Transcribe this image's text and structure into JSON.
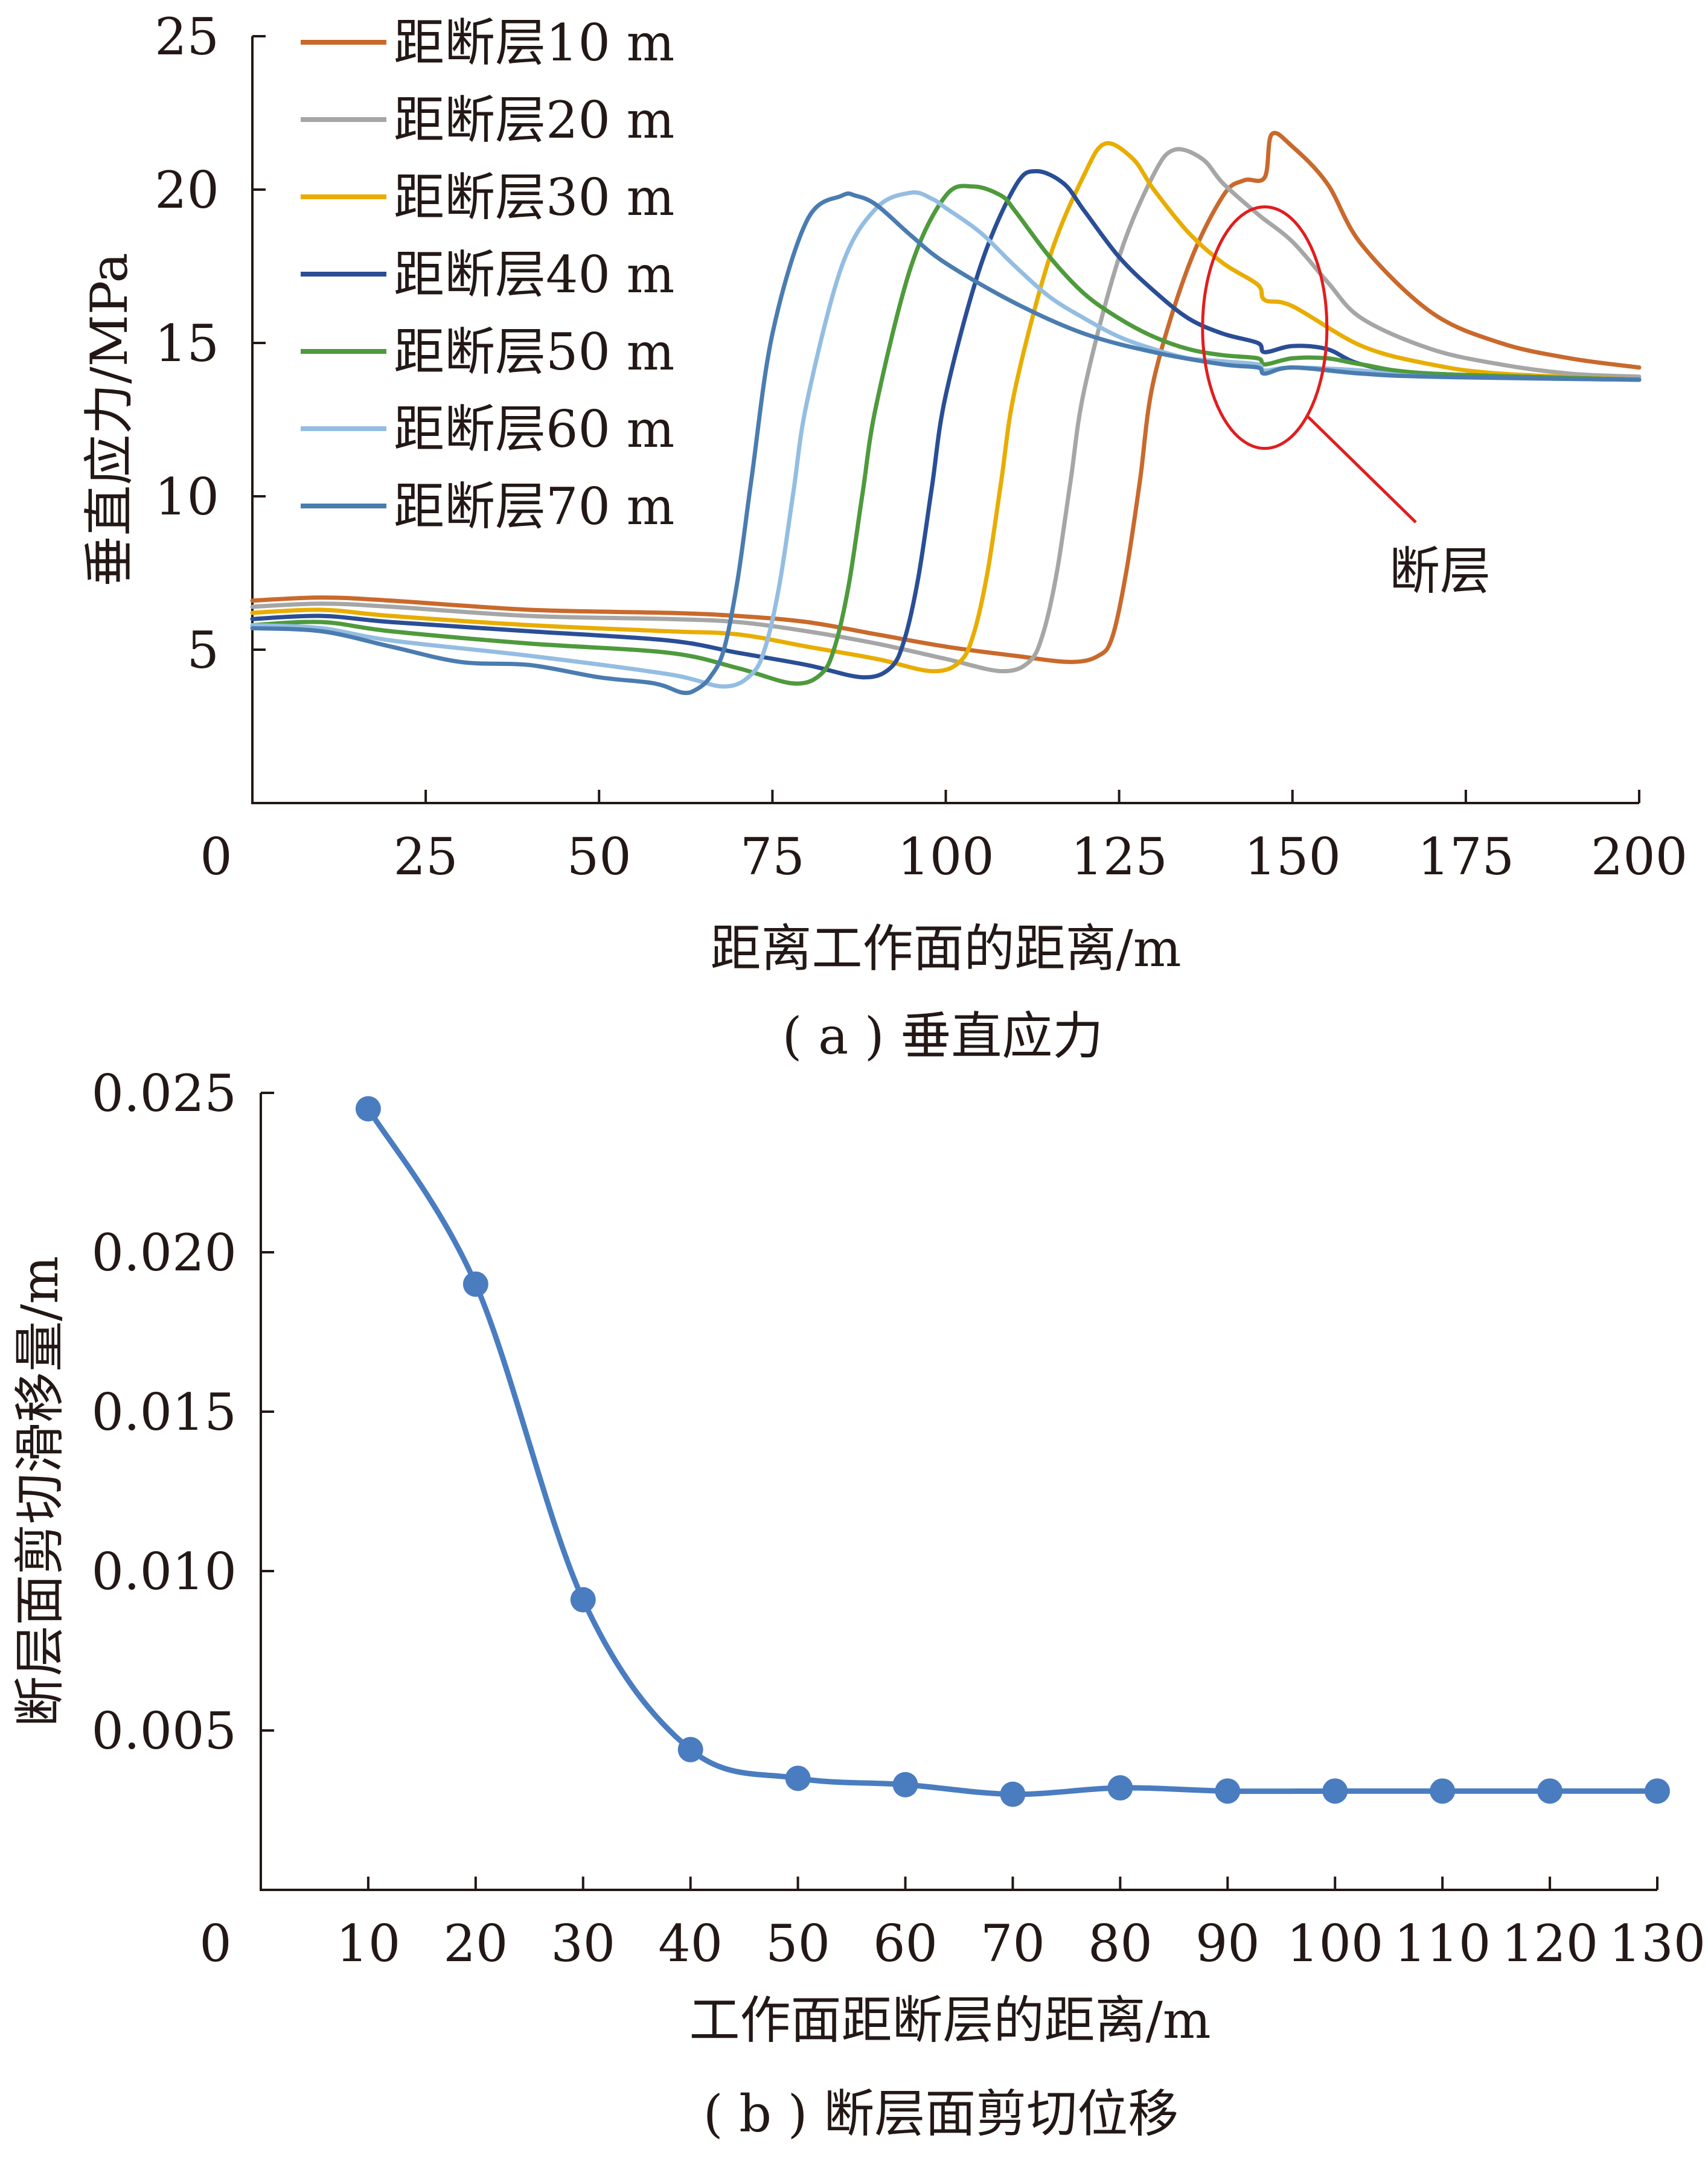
{
  "chart_data": [
    {
      "type": "line",
      "caption": "( a ) 垂直应力",
      "xlabel": "距离工作面的距离/m",
      "ylabel": "垂直应力/MPa",
      "xlim": [
        0,
        200
      ],
      "ylim": [
        0,
        25
      ],
      "xticks": [
        0,
        25,
        50,
        75,
        100,
        125,
        150,
        175,
        200
      ],
      "yticks": [
        5,
        10,
        15,
        20,
        25
      ],
      "origin_label": "0",
      "grid": false,
      "legend_position": "top-left",
      "annotation": {
        "text": "断层",
        "type": "ellipse",
        "color": "#e01e1e",
        "x": 146,
        "y": 15.5
      },
      "series": [
        {
          "name": "距断层10 m",
          "color": "#c9692c",
          "x": [
            0,
            10,
            20,
            40,
            60,
            70,
            80,
            90,
            100,
            110,
            118,
            122,
            124,
            126,
            128,
            130,
            135,
            140,
            143,
            146,
            147,
            150,
            155,
            160,
            170,
            180,
            190,
            200
          ],
          "y": [
            6.6,
            6.7,
            6.6,
            6.3,
            6.2,
            6.1,
            5.9,
            5.5,
            5.1,
            4.8,
            4.6,
            4.8,
            5.4,
            7.5,
            10.5,
            13.8,
            17.5,
            19.8,
            20.3,
            20.4,
            21.8,
            21.4,
            20.2,
            18.2,
            16.0,
            15.0,
            14.5,
            14.2
          ]
        },
        {
          "name": "距断层20 m",
          "color": "#a6a6a6",
          "x": [
            0,
            10,
            20,
            40,
            60,
            70,
            80,
            90,
            100,
            108,
            112,
            114,
            116,
            118,
            120,
            125,
            130,
            133,
            137,
            140,
            145,
            150,
            155,
            160,
            170,
            180,
            190,
            200
          ],
          "y": [
            6.4,
            6.5,
            6.4,
            6.1,
            6.0,
            5.9,
            5.6,
            5.2,
            4.7,
            4.3,
            4.6,
            5.5,
            7.5,
            10.5,
            13.5,
            17.8,
            20.5,
            21.3,
            21.0,
            20.2,
            19.2,
            18.3,
            17.0,
            15.8,
            14.8,
            14.3,
            14.0,
            13.9
          ]
        },
        {
          "name": "距断层30 m",
          "color": "#e8ad00",
          "x": [
            0,
            10,
            20,
            40,
            60,
            70,
            80,
            90,
            98,
            102,
            104,
            106,
            108,
            110,
            115,
            120,
            123,
            127,
            130,
            135,
            140,
            145,
            146,
            150,
            160,
            170,
            180,
            200
          ],
          "y": [
            6.2,
            6.3,
            6.1,
            5.8,
            5.6,
            5.5,
            5.1,
            4.7,
            4.3,
            4.6,
            5.5,
            7.5,
            10.5,
            13.5,
            17.8,
            20.5,
            21.5,
            21.0,
            20.0,
            18.6,
            17.6,
            16.9,
            16.4,
            16.2,
            14.9,
            14.3,
            14.0,
            13.8
          ]
        },
        {
          "name": "距断层40 m",
          "color": "#2a4e96",
          "x": [
            0,
            10,
            20,
            40,
            60,
            70,
            80,
            88,
            92,
            94,
            96,
            98,
            100,
            105,
            110,
            113,
            117,
            120,
            125,
            130,
            135,
            140,
            145,
            146,
            150,
            155,
            160,
            170,
            200
          ],
          "y": [
            6.0,
            6.1,
            5.9,
            5.6,
            5.3,
            4.9,
            4.5,
            4.1,
            4.4,
            5.3,
            7.3,
            10.3,
            13.3,
            17.5,
            20.1,
            20.6,
            20.2,
            19.3,
            17.8,
            16.7,
            15.8,
            15.3,
            15.0,
            14.7,
            14.9,
            14.8,
            14.3,
            14.0,
            13.8
          ]
        },
        {
          "name": "距断层50 m",
          "color": "#4e9a3c",
          "x": [
            0,
            10,
            20,
            40,
            60,
            70,
            78,
            82,
            84,
            86,
            88,
            90,
            95,
            100,
            104,
            108,
            110,
            115,
            120,
            125,
            130,
            135,
            140,
            145,
            146,
            150,
            155,
            160,
            170,
            200
          ],
          "y": [
            5.8,
            5.9,
            5.6,
            5.2,
            4.9,
            4.4,
            3.9,
            4.2,
            5.1,
            7.1,
            10.1,
            13.0,
            17.5,
            19.8,
            20.1,
            19.8,
            19.3,
            17.8,
            16.6,
            15.8,
            15.2,
            14.8,
            14.6,
            14.5,
            14.3,
            14.5,
            14.5,
            14.3,
            14.0,
            13.8
          ]
        },
        {
          "name": "距断层60 m",
          "color": "#94bde2",
          "x": [
            0,
            10,
            20,
            40,
            60,
            68,
            72,
            74,
            76,
            78,
            80,
            85,
            90,
            95,
            98,
            100,
            105,
            110,
            115,
            120,
            125,
            130,
            135,
            140,
            145,
            146,
            150,
            160,
            170,
            200
          ],
          "y": [
            5.8,
            5.7,
            5.3,
            4.8,
            4.2,
            3.8,
            4.2,
            5.1,
            7.1,
            10.1,
            13.1,
            17.5,
            19.4,
            19.9,
            19.7,
            19.4,
            18.6,
            17.5,
            16.5,
            15.8,
            15.2,
            14.8,
            14.5,
            14.4,
            14.3,
            14.1,
            14.2,
            14.1,
            13.9,
            13.8
          ]
        },
        {
          "name": "距断层70 m",
          "color": "#4a7cb0",
          "x": [
            0,
            10,
            20,
            30,
            40,
            50,
            58,
            62,
            64,
            66,
            68,
            70,
            72,
            75,
            80,
            85,
            87,
            90,
            95,
            100,
            110,
            120,
            130,
            140,
            145,
            146,
            150,
            160,
            170,
            200
          ],
          "y": [
            5.7,
            5.6,
            5.1,
            4.6,
            4.5,
            4.1,
            3.9,
            3.6,
            3.7,
            4.1,
            5.0,
            7.3,
            10.6,
            15.3,
            19.0,
            19.8,
            19.8,
            19.5,
            18.5,
            17.6,
            16.3,
            15.3,
            14.7,
            14.3,
            14.2,
            14.0,
            14.2,
            14.0,
            13.9,
            13.8
          ]
        }
      ]
    },
    {
      "type": "line",
      "caption": "( b ) 断层面剪切位移",
      "xlabel": "工作面距断层的距离/m",
      "ylabel": "断层面剪切滑移量/m",
      "xticks": [
        10,
        20,
        30,
        40,
        50,
        60,
        70,
        80,
        90,
        100,
        110,
        120,
        130
      ],
      "xlim": [
        0,
        130
      ],
      "ylim": [
        0,
        0.025
      ],
      "yticks": [
        "0.005",
        "0.010",
        "0.015",
        "0.020",
        "0.025"
      ],
      "origin_label": "0",
      "grid": false,
      "markers": true,
      "color": "#4a7cc0",
      "series": [
        {
          "x": [
            10,
            20,
            30,
            40,
            50,
            60,
            70,
            80,
            90,
            100,
            110,
            120,
            130
          ],
          "y": [
            0.0245,
            0.019,
            0.0091,
            0.0044,
            0.0035,
            0.0033,
            0.003,
            0.0032,
            0.0031,
            0.0031,
            0.0031,
            0.0031,
            0.0031
          ]
        }
      ]
    }
  ]
}
